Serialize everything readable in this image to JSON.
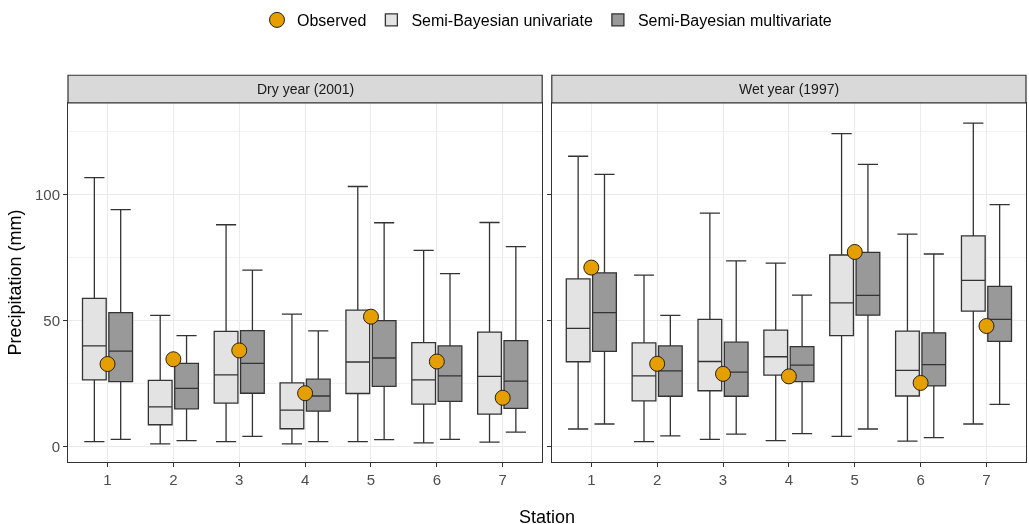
{
  "chart_data": [
    {
      "type": "box",
      "title": "Dry year (2001)",
      "xlabel": "Station",
      "ylabel": "Precipitation (mm)",
      "categories": [
        "1",
        "2",
        "3",
        "4",
        "5",
        "6",
        "7"
      ],
      "ylim": [
        -6.2,
        136.4
      ],
      "yticks": [
        0,
        50,
        100
      ],
      "grid": true,
      "legend": "top",
      "marker": "circle",
      "series": [
        {
          "name": "Observed",
          "type": "scatter",
          "color": "#e69f00",
          "x": [
            "1",
            "2",
            "3",
            "4",
            "5",
            "6",
            "7"
          ],
          "values": [
            32.7,
            34.6,
            38.1,
            21.1,
            51.5,
            33.7,
            19.3
          ]
        },
        {
          "name": "Semi-Bayesian univariate",
          "color": "#e3e3e3",
          "boxes": [
            {
              "low": 1.9,
              "q1": 26.4,
              "median": 39.9,
              "q3": 58.8,
              "high": 106.7
            },
            {
              "low": 1.0,
              "q1": 8.6,
              "median": 15.7,
              "q3": 26.2,
              "high": 52.0
            },
            {
              "low": 1.9,
              "q1": 17.2,
              "median": 28.4,
              "q3": 45.7,
              "high": 88.0
            },
            {
              "low": 1.0,
              "q1": 7.0,
              "median": 14.4,
              "q3": 25.2,
              "high": 52.5
            },
            {
              "low": 1.9,
              "q1": 21.0,
              "median": 33.5,
              "q3": 54.1,
              "high": 103.2
            },
            {
              "low": 1.4,
              "q1": 16.8,
              "median": 26.4,
              "q3": 41.2,
              "high": 77.8
            },
            {
              "low": 1.7,
              "q1": 12.8,
              "median": 27.8,
              "q3": 45.4,
              "high": 88.9
            }
          ]
        },
        {
          "name": "Semi-Bayesian multivariate",
          "color": "#999999",
          "boxes": [
            {
              "low": 2.8,
              "q1": 25.7,
              "median": 37.8,
              "q3": 53.1,
              "high": 94.0
            },
            {
              "low": 2.3,
              "q1": 14.9,
              "median": 23.0,
              "q3": 33.0,
              "high": 44.0
            },
            {
              "low": 4.0,
              "q1": 21.1,
              "median": 33.0,
              "q3": 46.0,
              "high": 70.0
            },
            {
              "low": 1.9,
              "q1": 14.0,
              "median": 20.0,
              "q3": 26.7,
              "high": 45.9
            },
            {
              "low": 2.7,
              "q1": 23.8,
              "median": 35.1,
              "q3": 49.9,
              "high": 88.8
            },
            {
              "low": 2.8,
              "q1": 17.9,
              "median": 28.0,
              "q3": 39.9,
              "high": 68.6
            },
            {
              "low": 5.7,
              "q1": 15.1,
              "median": 25.9,
              "q3": 42.0,
              "high": 79.3
            }
          ]
        }
      ]
    },
    {
      "type": "box",
      "title": "Wet year (1997)",
      "categories": [
        "1",
        "2",
        "3",
        "4",
        "5",
        "6",
        "7"
      ],
      "ylim": [
        -6.2,
        136.4
      ],
      "yticks": [
        0,
        50,
        100
      ],
      "grid": true,
      "tick_labels": "x",
      "marker": "circle",
      "series": [
        {
          "name": "Observed",
          "type": "scatter",
          "color": "#e69f00",
          "x": [
            "1",
            "2",
            "3",
            "4",
            "5",
            "6",
            "7"
          ],
          "values": [
            71.0,
            32.8,
            28.8,
            27.8,
            77.2,
            25.2,
            47.8
          ]
        },
        {
          "name": "Semi-Bayesian univariate",
          "color": "#e3e3e3",
          "boxes": [
            {
              "low": 6.9,
              "q1": 33.6,
              "median": 46.9,
              "q3": 66.5,
              "high": 115.2
            },
            {
              "low": 1.9,
              "q1": 18.1,
              "median": 28.0,
              "q3": 41.1,
              "high": 68.0
            },
            {
              "low": 2.8,
              "q1": 22.1,
              "median": 33.7,
              "q3": 50.4,
              "high": 92.6
            },
            {
              "low": 2.3,
              "q1": 28.3,
              "median": 35.6,
              "q3": 46.2,
              "high": 72.8
            },
            {
              "low": 4.0,
              "q1": 44.0,
              "median": 57.0,
              "q3": 76.0,
              "high": 124.2
            },
            {
              "low": 2.1,
              "q1": 20.0,
              "median": 30.2,
              "q3": 45.8,
              "high": 84.3
            },
            {
              "low": 8.9,
              "q1": 53.7,
              "median": 65.9,
              "q3": 83.6,
              "high": 128.4
            }
          ]
        },
        {
          "name": "Semi-Bayesian multivariate",
          "color": "#999999",
          "boxes": [
            {
              "low": 8.9,
              "q1": 37.7,
              "median": 53.1,
              "q3": 68.9,
              "high": 108.0
            },
            {
              "low": 4.2,
              "q1": 19.9,
              "median": 30.0,
              "q3": 39.9,
              "high": 52.0
            },
            {
              "low": 4.9,
              "q1": 19.9,
              "median": 29.5,
              "q3": 41.4,
              "high": 73.7
            },
            {
              "low": 5.1,
              "q1": 25.7,
              "median": 32.3,
              "q3": 39.6,
              "high": 60.1
            },
            {
              "low": 6.9,
              "q1": 52.1,
              "median": 60.0,
              "q3": 77.0,
              "high": 112.0
            },
            {
              "low": 3.5,
              "q1": 24.0,
              "median": 32.5,
              "q3": 45.1,
              "high": 76.4
            },
            {
              "low": 16.7,
              "q1": 41.7,
              "median": 50.4,
              "q3": 63.5,
              "high": 96.0
            }
          ]
        }
      ]
    }
  ]
}
